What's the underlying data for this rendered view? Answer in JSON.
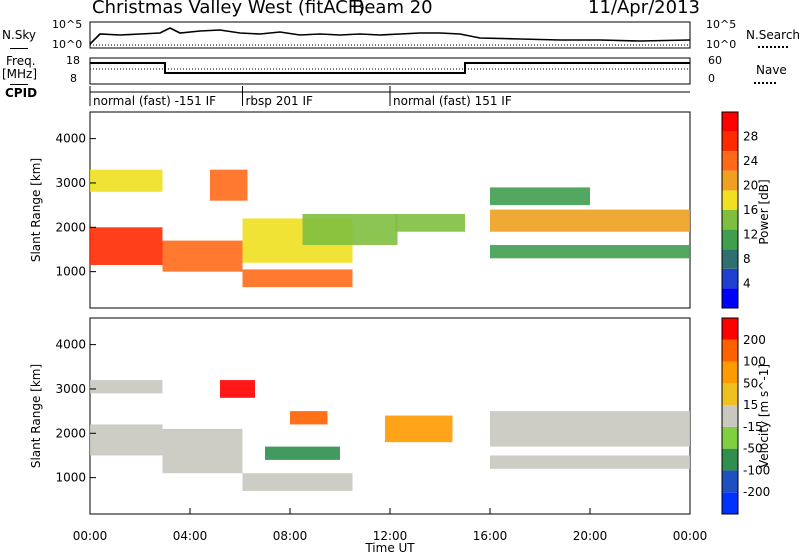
{
  "header": {
    "station": "Christmas Valley West (fitACF)",
    "beam": "Beam 20",
    "date": "11/Apr/2013"
  },
  "top_panels": {
    "nsky_label": "N.Sky",
    "nsky_ticks": [
      "10^5",
      "10^0"
    ],
    "nsearch_label": "N.Search",
    "nsearch_ticks": [
      "10^5",
      "10^0"
    ],
    "freq_label_1": "Freq.",
    "freq_label_2": "[MHz]",
    "freq_ticks": [
      "18",
      "8"
    ],
    "nave_label": "Nave",
    "nave_ticks": [
      "60",
      "0"
    ],
    "cpid_label": "CPID",
    "cpid_segments": [
      {
        "label": "normal (fast) -151 IF",
        "start_hour": 0,
        "end_hour": 6.1
      },
      {
        "label": "rbsp 201 IF",
        "start_hour": 6.1,
        "end_hour": 12.0
      },
      {
        "label": "normal (fast) 151 IF",
        "start_hour": 12.0,
        "end_hour": 24
      }
    ]
  },
  "chart_data": [
    {
      "type": "heatmap",
      "name": "Power panel",
      "ylabel": "Slant Range [km]",
      "xlabel": "",
      "xlim": [
        0,
        24
      ],
      "ylim": [
        180,
        4600
      ],
      "yticks": [
        "1000",
        "2000",
        "3000",
        "4000"
      ],
      "colorbar": {
        "label": "Power [dB]",
        "ticks": [
          "28",
          "24",
          "20",
          "16",
          "12",
          "8",
          "4"
        ],
        "colors": [
          "#0000ff",
          "#1f3fd0",
          "#2f6f70",
          "#3f9f4f",
          "#7fbf3f",
          "#f0e020",
          "#f0a020",
          "#ff6a1a",
          "#ff2a00",
          "#ff0000"
        ]
      },
      "bands": [
        {
          "x0": 0,
          "x1": 2.9,
          "y0": 1150,
          "y1": 2000,
          "level": 0.85
        },
        {
          "x0": 2.9,
          "x1": 6.1,
          "y0": 1000,
          "y1": 1700,
          "level": 0.82
        },
        {
          "x0": 6.1,
          "x1": 10.5,
          "y0": 650,
          "y1": 1050,
          "level": 0.75
        },
        {
          "x0": 0,
          "x1": 2.9,
          "y0": 2800,
          "y1": 3300,
          "level": 0.55
        },
        {
          "x0": 4.8,
          "x1": 6.3,
          "y0": 2600,
          "y1": 3300,
          "level": 0.8
        },
        {
          "x0": 6.1,
          "x1": 10.5,
          "y0": 1200,
          "y1": 2200,
          "level": 0.55
        },
        {
          "x0": 8.5,
          "x1": 12.3,
          "y0": 1600,
          "y1": 2300,
          "level": 0.45
        },
        {
          "x0": 12.2,
          "x1": 15.0,
          "y0": 1900,
          "y1": 2300,
          "level": 0.4
        },
        {
          "x0": 16.0,
          "x1": 24,
          "y0": 1900,
          "y1": 2400,
          "level": 0.65
        },
        {
          "x0": 16.0,
          "x1": 24,
          "y0": 1300,
          "y1": 1600,
          "level": 0.35
        },
        {
          "x0": 16.0,
          "x1": 20.0,
          "y0": 2500,
          "y1": 2900,
          "level": 0.3
        }
      ]
    },
    {
      "type": "heatmap",
      "name": "Velocity panel",
      "ylabel": "Slant Range [km]",
      "xlabel": "Time UT",
      "xlim": [
        0,
        24
      ],
      "ylim": [
        180,
        4600
      ],
      "xticks": [
        "00:00",
        "04:00",
        "08:00",
        "12:00",
        "16:00",
        "20:00",
        "00:00"
      ],
      "yticks": [
        "1000",
        "2000",
        "3000",
        "4000"
      ],
      "colorbar": {
        "label": "Velocity [m s^-1]",
        "ticks": [
          "200",
          "100",
          "50",
          "15",
          "-15",
          "-50",
          "-100",
          "-200"
        ],
        "colors": [
          "#0033ff",
          "#2050c0",
          "#2f8f4f",
          "#7fcf3f",
          "#c8c8c0",
          "#f0c020",
          "#ff9a00",
          "#ff6000",
          "#ff0000"
        ]
      },
      "bands": [
        {
          "x0": 0,
          "x1": 2.9,
          "y0": 1500,
          "y1": 2200,
          "level": 0.5
        },
        {
          "x0": 2.9,
          "x1": 6.1,
          "y0": 1100,
          "y1": 2100,
          "level": 0.5
        },
        {
          "x0": 6.1,
          "x1": 10.5,
          "y0": 700,
          "y1": 1100,
          "level": 0.5
        },
        {
          "x0": 0,
          "x1": 2.9,
          "y0": 2900,
          "y1": 3200,
          "level": 0.5
        },
        {
          "x0": 16.0,
          "x1": 24,
          "y0": 1700,
          "y1": 2500,
          "level": 0.5
        },
        {
          "x0": 16.0,
          "x1": 24,
          "y0": 1200,
          "y1": 1500,
          "level": 0.5
        },
        {
          "x0": 5.2,
          "x1": 6.6,
          "y0": 2800,
          "y1": 3200,
          "level": 0.95
        },
        {
          "x0": 8.0,
          "x1": 9.5,
          "y0": 2200,
          "y1": 2500,
          "level": 0.85
        },
        {
          "x0": 11.8,
          "x1": 14.5,
          "y0": 1800,
          "y1": 2400,
          "level": 0.7
        },
        {
          "x0": 7.0,
          "x1": 10.0,
          "y0": 1400,
          "y1": 1700,
          "level": 0.2
        }
      ]
    }
  ]
}
